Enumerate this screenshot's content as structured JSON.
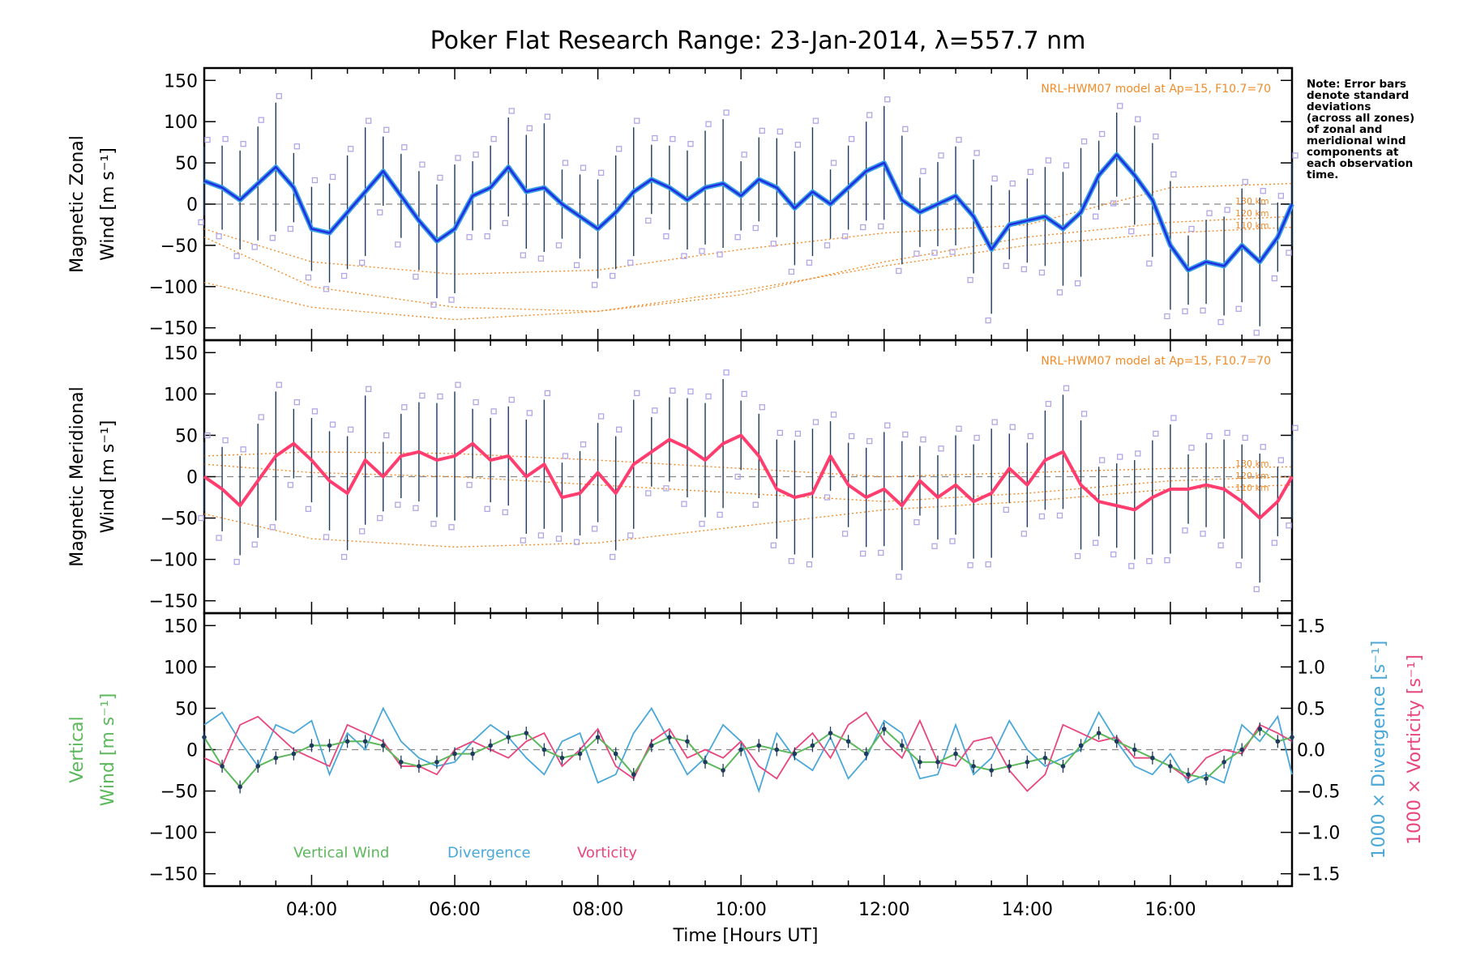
{
  "chart_data": {
    "type": "line",
    "title": "Poker Flat Research Range: 23-Jan-2014, λ=557.7 nm",
    "xlabel": "Time [Hours UT]",
    "xlim": [
      2.5,
      17.7
    ],
    "x_ticks": [
      4,
      6,
      8,
      10,
      12,
      14,
      16
    ],
    "x_tick_labels": [
      "04:00",
      "06:00",
      "08:00",
      "10:00",
      "12:00",
      "14:00",
      "16:00"
    ],
    "note_lines": [
      "Note: Error bars",
      "denote standard",
      "deviations",
      "(across all zones)",
      "of zonal and",
      "meridional wind",
      "components at",
      "each observation",
      "time."
    ],
    "colors": {
      "zonal_mean": "#1f2fe0",
      "zonal_smooth": "#3aa0e6",
      "meridional": "#ff3d6e",
      "model": "#f28c28",
      "scatter": "#b3a6e6",
      "vertical": "#5cb85c",
      "divergence": "#4aa8d8",
      "vorticity": "#e8467c",
      "errorbar": "#1e3a5f"
    },
    "panels": [
      {
        "id": "zonal",
        "ylabel_line1": "Magnetic Zonal",
        "ylabel_line2": "Wind [m s⁻¹]",
        "ylim": [
          -165,
          165
        ],
        "y_ticks": [
          -150,
          -100,
          -50,
          0,
          50,
          100,
          150
        ],
        "model_label": "NRL-HWM07 model at Ap=15, F10.7=70",
        "altitude_labels": [
          "130 km",
          "120 km",
          "110 km"
        ],
        "series": [
          {
            "name": "Zonal wind",
            "x": [
              2.5,
              2.75,
              3.0,
              3.25,
              3.5,
              3.75,
              4.0,
              4.25,
              4.5,
              4.75,
              5.0,
              5.25,
              5.5,
              5.75,
              6.0,
              6.25,
              6.5,
              6.75,
              7.0,
              7.25,
              7.5,
              7.75,
              8.0,
              8.25,
              8.5,
              8.75,
              9.0,
              9.25,
              9.5,
              9.75,
              10.0,
              10.25,
              10.5,
              10.75,
              11.0,
              11.25,
              11.5,
              11.75,
              12.0,
              12.25,
              12.5,
              12.75,
              13.0,
              13.25,
              13.5,
              13.75,
              14.0,
              14.25,
              14.5,
              14.75,
              15.0,
              15.25,
              15.5,
              15.75,
              16.0,
              16.25,
              16.5,
              16.75,
              17.0,
              17.25,
              17.5,
              17.7
            ],
            "values": [
              28,
              20,
              5,
              25,
              45,
              20,
              -30,
              -35,
              -10,
              15,
              40,
              10,
              -20,
              -45,
              -30,
              10,
              20,
              45,
              15,
              20,
              0,
              -15,
              -30,
              -10,
              15,
              30,
              20,
              5,
              20,
              25,
              10,
              30,
              20,
              -5,
              15,
              0,
              20,
              40,
              50,
              5,
              -10,
              0,
              10,
              -15,
              -55,
              -25,
              -20,
              -15,
              -30,
              -10,
              35,
              60,
              35,
              5,
              -50,
              -80,
              -70,
              -75,
              -50,
              -70,
              -40,
              0
            ]
          }
        ],
        "model_curves": [
          {
            "x": [
              2.5,
              4,
              6,
              8,
              10,
              12,
              14,
              16,
              17.7
            ],
            "values": [
              -95,
              -125,
              -140,
              -130,
              -105,
              -75,
              -50,
              -35,
              -28
            ]
          },
          {
            "x": [
              2.5,
              4,
              6,
              8,
              10,
              12,
              14,
              16,
              17.7
            ],
            "values": [
              -40,
              -100,
              -125,
              -130,
              -110,
              -70,
              -40,
              -22,
              -15
            ]
          },
          {
            "x": [
              2.5,
              4,
              6,
              8,
              10,
              12,
              14,
              16,
              17.7
            ],
            "values": [
              -30,
              -70,
              -85,
              -80,
              -55,
              -35,
              -25,
              20,
              25
            ]
          }
        ]
      },
      {
        "id": "meridional",
        "ylabel_line1": "Magnetic Meridional",
        "ylabel_line2": "Wind [m s⁻¹]",
        "ylim": [
          -165,
          165
        ],
        "y_ticks": [
          -150,
          -100,
          -50,
          0,
          50,
          100,
          150
        ],
        "model_label": "NRL-HWM07 model at Ap=15, F10.7=70",
        "altitude_labels": [
          "130 km",
          "120 km",
          "110 km"
        ],
        "series": [
          {
            "name": "Meridional wind",
            "x": [
              2.5,
              2.75,
              3.0,
              3.25,
              3.5,
              3.75,
              4.0,
              4.25,
              4.5,
              4.75,
              5.0,
              5.25,
              5.5,
              5.75,
              6.0,
              6.25,
              6.5,
              6.75,
              7.0,
              7.25,
              7.5,
              7.75,
              8.0,
              8.25,
              8.5,
              8.75,
              9.0,
              9.25,
              9.5,
              9.75,
              10.0,
              10.25,
              10.5,
              10.75,
              11.0,
              11.25,
              11.5,
              11.75,
              12.0,
              12.25,
              12.5,
              12.75,
              13.0,
              13.25,
              13.5,
              13.75,
              14.0,
              14.25,
              14.5,
              14.75,
              15.0,
              15.25,
              15.5,
              15.75,
              16.0,
              16.25,
              16.5,
              16.75,
              17.0,
              17.25,
              17.5,
              17.7
            ],
            "values": [
              0,
              -15,
              -35,
              -5,
              25,
              40,
              20,
              -5,
              -20,
              20,
              0,
              25,
              30,
              20,
              25,
              40,
              20,
              25,
              0,
              15,
              -25,
              -20,
              5,
              -20,
              15,
              30,
              45,
              35,
              20,
              40,
              50,
              25,
              -15,
              -25,
              -20,
              25,
              -10,
              -25,
              -15,
              -35,
              -5,
              -25,
              -10,
              -30,
              -20,
              10,
              -10,
              20,
              30,
              -10,
              -30,
              -35,
              -40,
              -25,
              -15,
              -15,
              -10,
              -15,
              -30,
              -50,
              -30,
              0
            ]
          }
        ],
        "model_curves": [
          {
            "x": [
              2.5,
              4,
              6,
              8,
              10,
              12,
              14,
              16,
              17.7
            ],
            "values": [
              -45,
              -75,
              -85,
              -80,
              -60,
              -40,
              -30,
              -15,
              -10
            ]
          },
          {
            "x": [
              2.5,
              4,
              6,
              8,
              10,
              12,
              14,
              16,
              17.7
            ],
            "values": [
              15,
              5,
              0,
              -10,
              -20,
              -30,
              -20,
              -5,
              0
            ]
          },
          {
            "x": [
              2.5,
              4,
              6,
              8,
              10,
              12,
              14,
              16,
              17.7
            ],
            "values": [
              25,
              30,
              28,
              20,
              10,
              0,
              5,
              10,
              12
            ]
          }
        ]
      },
      {
        "id": "vertical",
        "ylabel_line1": "Vertical",
        "ylabel_line2": "Wind [m s⁻¹]",
        "ylim": [
          -165,
          165
        ],
        "y_ticks": [
          -150,
          -100,
          -50,
          0,
          50,
          100,
          150
        ],
        "right_axis": {
          "ylim": [
            -1.65,
            1.65
          ],
          "ticks": [
            -1.5,
            -1.0,
            -0.5,
            0.0,
            0.5,
            1.0,
            1.5
          ],
          "label_divergence": "1000 × Divergence [s⁻¹]",
          "label_vorticity": "1000 × Vorticity [s⁻¹]"
        },
        "legend": [
          "Vertical Wind",
          "Divergence",
          "Vorticity"
        ],
        "series": [
          {
            "name": "Vertical Wind",
            "x": [
              2.5,
              2.75,
              3.0,
              3.25,
              3.5,
              3.75,
              4.0,
              4.25,
              4.5,
              4.75,
              5.0,
              5.25,
              5.5,
              5.75,
              6.0,
              6.25,
              6.5,
              6.75,
              7.0,
              7.25,
              7.5,
              7.75,
              8.0,
              8.25,
              8.5,
              8.75,
              9.0,
              9.25,
              9.5,
              9.75,
              10.0,
              10.25,
              10.5,
              10.75,
              11.0,
              11.25,
              11.5,
              11.75,
              12.0,
              12.25,
              12.5,
              12.75,
              13.0,
              13.25,
              13.5,
              13.75,
              14.0,
              14.25,
              14.5,
              14.75,
              15.0,
              15.25,
              15.5,
              15.75,
              16.0,
              16.25,
              16.5,
              16.75,
              17.0,
              17.25,
              17.5,
              17.7
            ],
            "values": [
              15,
              -20,
              -45,
              -20,
              -10,
              -5,
              5,
              5,
              10,
              10,
              5,
              -15,
              -20,
              -15,
              -5,
              -5,
              5,
              15,
              20,
              0,
              -10,
              -5,
              15,
              -5,
              -30,
              5,
              15,
              10,
              -15,
              -25,
              0,
              5,
              0,
              -5,
              5,
              20,
              10,
              -5,
              25,
              5,
              -15,
              -15,
              -5,
              -20,
              -25,
              -20,
              -15,
              -10,
              -20,
              5,
              20,
              10,
              0,
              -10,
              -20,
              -30,
              -35,
              -15,
              0,
              25,
              10,
              15
            ]
          },
          {
            "name": "Divergence",
            "x": [
              2.5,
              2.75,
              3.0,
              3.25,
              3.5,
              3.75,
              4.0,
              4.25,
              4.5,
              4.75,
              5.0,
              5.25,
              5.5,
              5.75,
              6.0,
              6.25,
              6.5,
              6.75,
              7.0,
              7.25,
              7.5,
              7.75,
              8.0,
              8.25,
              8.5,
              8.75,
              9.0,
              9.25,
              9.5,
              9.75,
              10.0,
              10.25,
              10.5,
              10.75,
              11.0,
              11.25,
              11.5,
              11.75,
              12.0,
              12.25,
              12.5,
              12.75,
              13.0,
              13.25,
              13.5,
              13.75,
              14.0,
              14.25,
              14.5,
              14.75,
              15.0,
              15.25,
              15.5,
              15.75,
              16.0,
              16.25,
              16.5,
              16.75,
              17.0,
              17.25,
              17.5,
              17.7
            ],
            "values": [
              0.3,
              0.45,
              0.1,
              -0.2,
              0.3,
              0.2,
              0.35,
              -0.3,
              0.2,
              0.0,
              0.5,
              0.1,
              -0.1,
              -0.2,
              -0.15,
              0.1,
              0.3,
              0.15,
              -0.1,
              -0.3,
              0.1,
              0.2,
              -0.4,
              -0.3,
              0.2,
              0.5,
              0.1,
              -0.3,
              -0.1,
              0.3,
              0.1,
              -0.5,
              0.2,
              -0.1,
              -0.25,
              0.15,
              -0.35,
              -0.1,
              0.35,
              0.2,
              -0.35,
              -0.3,
              0.3,
              -0.3,
              -0.1,
              0.35,
              0.0,
              -0.2,
              -0.1,
              0.0,
              0.45,
              0.1,
              -0.2,
              -0.3,
              -0.05,
              -0.4,
              -0.3,
              -0.4,
              0.3,
              0.1,
              0.4,
              -0.3
            ]
          },
          {
            "name": "Vorticity",
            "x": [
              2.5,
              2.75,
              3.0,
              3.25,
              3.5,
              3.75,
              4.0,
              4.25,
              4.5,
              4.75,
              5.0,
              5.25,
              5.5,
              5.75,
              6.0,
              6.25,
              6.5,
              6.75,
              7.0,
              7.25,
              7.5,
              7.75,
              8.0,
              8.25,
              8.5,
              8.75,
              9.0,
              9.25,
              9.5,
              9.75,
              10.0,
              10.25,
              10.5,
              10.75,
              11.0,
              11.25,
              11.5,
              11.75,
              12.0,
              12.25,
              12.5,
              12.75,
              13.0,
              13.25,
              13.5,
              13.75,
              14.0,
              14.25,
              14.5,
              14.75,
              15.0,
              15.25,
              15.5,
              15.75,
              16.0,
              16.25,
              16.5,
              16.75,
              17.0,
              17.25,
              17.5,
              17.7
            ],
            "values": [
              -0.1,
              -0.2,
              0.3,
              0.4,
              0.2,
              0.0,
              -0.1,
              -0.2,
              0.3,
              0.2,
              0.1,
              -0.2,
              -0.2,
              -0.3,
              0.0,
              0.1,
              0.0,
              -0.1,
              0.1,
              0.2,
              -0.2,
              0.0,
              0.25,
              -0.2,
              -0.35,
              0.1,
              0.25,
              -0.1,
              0.0,
              -0.1,
              0.1,
              -0.2,
              -0.35,
              0.0,
              0.2,
              -0.1,
              0.3,
              0.45,
              0.1,
              -0.1,
              0.35,
              -0.15,
              -0.2,
              0.1,
              0.15,
              -0.25,
              -0.5,
              -0.3,
              0.3,
              0.2,
              0.1,
              0.15,
              -0.1,
              -0.1,
              -0.2,
              -0.35,
              -0.1,
              0.0,
              -0.05,
              0.3,
              0.2,
              0.1
            ]
          }
        ]
      }
    ]
  }
}
